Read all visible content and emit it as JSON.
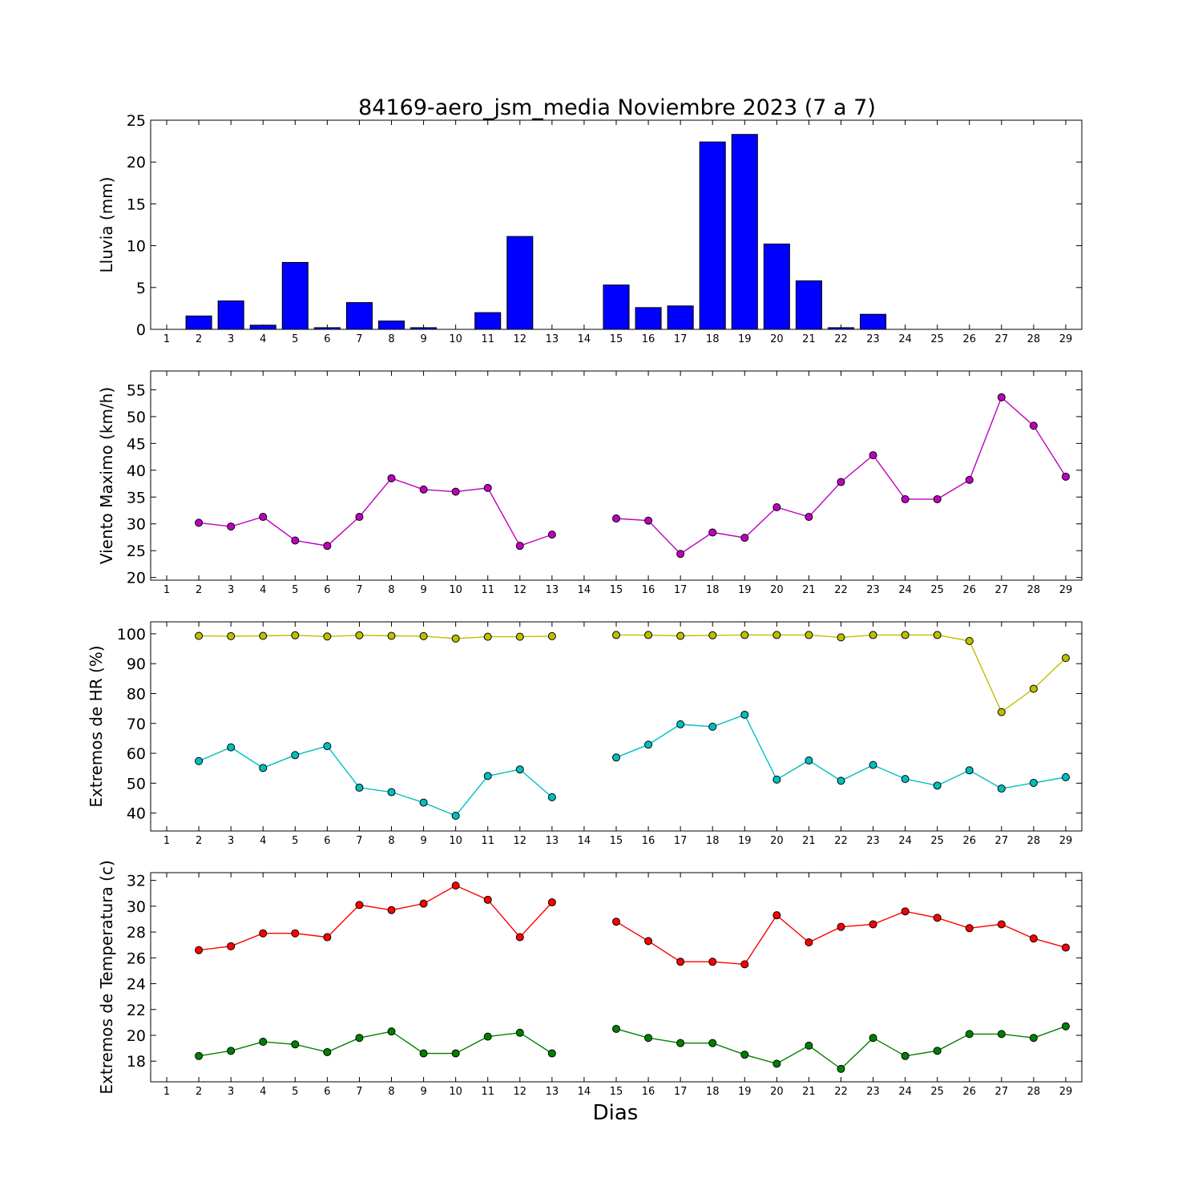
{
  "figure": {
    "title": "84169-aero_jsm_media Noviembre 2023  (7 a 7)",
    "xlabel": "Dias"
  },
  "chart_data": [
    {
      "type": "bar",
      "ylabel": "Lluvia (mm)",
      "ylim": [
        0,
        25
      ],
      "yticks": [
        0,
        5,
        10,
        15,
        20,
        25
      ],
      "xlim": [
        0.5,
        29.5
      ],
      "categories": [
        1,
        2,
        3,
        4,
        5,
        6,
        7,
        8,
        9,
        10,
        11,
        12,
        13,
        14,
        15,
        16,
        17,
        18,
        19,
        20,
        21,
        22,
        23,
        24,
        25,
        26,
        27,
        28,
        29
      ],
      "series": [
        {
          "color": "#0000ff",
          "values": [
            0,
            1.6,
            3.4,
            0.5,
            8.0,
            0.2,
            3.2,
            1.0,
            0.2,
            0,
            2.0,
            11.1,
            0,
            0,
            5.3,
            2.6,
            2.8,
            22.4,
            23.3,
            10.2,
            5.8,
            0.2,
            1.8,
            0,
            0,
            0,
            0,
            0,
            0
          ]
        }
      ]
    },
    {
      "type": "line",
      "ylabel": "Viento Maximo (km/h)",
      "ylim": [
        19.5,
        58.5
      ],
      "yticks": [
        20,
        25,
        30,
        35,
        40,
        45,
        50,
        55
      ],
      "xlim": [
        0.5,
        29.5
      ],
      "x": [
        1,
        2,
        3,
        4,
        5,
        6,
        7,
        8,
        9,
        10,
        11,
        12,
        13,
        14,
        15,
        16,
        17,
        18,
        19,
        20,
        21,
        22,
        23,
        24,
        25,
        26,
        27,
        28,
        29
      ],
      "series": [
        {
          "color": "#bf00bf",
          "values": [
            null,
            30.2,
            29.5,
            31.3,
            26.9,
            25.9,
            31.3,
            38.5,
            36.4,
            36.0,
            36.7,
            25.9,
            28.0,
            null,
            31.0,
            30.6,
            24.4,
            28.4,
            27.4,
            33.1,
            31.3,
            37.8,
            42.8,
            34.6,
            34.6,
            38.2,
            53.6,
            48.3,
            38.8
          ]
        }
      ]
    },
    {
      "type": "line",
      "ylabel": "Extremos de HR (%)",
      "ylim": [
        34,
        104
      ],
      "yticks": [
        40,
        50,
        60,
        70,
        80,
        90,
        100
      ],
      "xlim": [
        0.5,
        29.5
      ],
      "x": [
        1,
        2,
        3,
        4,
        5,
        6,
        7,
        8,
        9,
        10,
        11,
        12,
        13,
        14,
        15,
        16,
        17,
        18,
        19,
        20,
        21,
        22,
        23,
        24,
        25,
        26,
        27,
        28,
        29
      ],
      "series": [
        {
          "color": "#bfbf00",
          "values": [
            null,
            99.3,
            99.2,
            99.3,
            99.5,
            99.1,
            99.5,
            99.3,
            99.2,
            98.4,
            99.0,
            99.0,
            99.2,
            null,
            99.6,
            99.6,
            99.3,
            99.5,
            99.6,
            99.6,
            99.6,
            98.8,
            99.6,
            99.6,
            99.6,
            97.6,
            73.8,
            81.6,
            91.9
          ]
        },
        {
          "color": "#00bfbf",
          "values": [
            null,
            57.4,
            62.0,
            55.1,
            59.4,
            62.4,
            48.5,
            47.0,
            43.5,
            39.1,
            52.4,
            54.6,
            45.3,
            null,
            58.6,
            62.9,
            69.7,
            68.9,
            72.9,
            51.2,
            57.6,
            50.8,
            56.1,
            51.4,
            49.2,
            54.3,
            48.2,
            50.1,
            52.0
          ]
        }
      ]
    },
    {
      "type": "line",
      "ylabel": "Extremos de Temperatura (c)",
      "ylim": [
        16.4,
        32.6
      ],
      "yticks": [
        18,
        20,
        22,
        24,
        26,
        28,
        30,
        32
      ],
      "xlim": [
        0.5,
        29.5
      ],
      "x": [
        1,
        2,
        3,
        4,
        5,
        6,
        7,
        8,
        9,
        10,
        11,
        12,
        13,
        14,
        15,
        16,
        17,
        18,
        19,
        20,
        21,
        22,
        23,
        24,
        25,
        26,
        27,
        28,
        29
      ],
      "series": [
        {
          "color": "#ff0000",
          "values": [
            null,
            26.6,
            26.9,
            27.9,
            27.9,
            27.6,
            30.1,
            29.7,
            30.2,
            31.6,
            30.5,
            27.6,
            30.3,
            null,
            28.8,
            27.3,
            25.7,
            25.7,
            25.5,
            29.3,
            27.2,
            28.4,
            28.6,
            29.6,
            29.1,
            28.3,
            28.6,
            27.5,
            26.8
          ]
        },
        {
          "color": "#008000",
          "values": [
            null,
            18.4,
            18.8,
            19.5,
            19.3,
            18.7,
            19.8,
            20.3,
            18.6,
            18.6,
            19.9,
            20.2,
            18.6,
            null,
            20.5,
            19.8,
            19.4,
            19.4,
            18.5,
            17.8,
            19.2,
            17.4,
            19.8,
            18.4,
            18.8,
            20.1,
            20.1,
            19.8,
            20.7
          ]
        }
      ]
    }
  ]
}
